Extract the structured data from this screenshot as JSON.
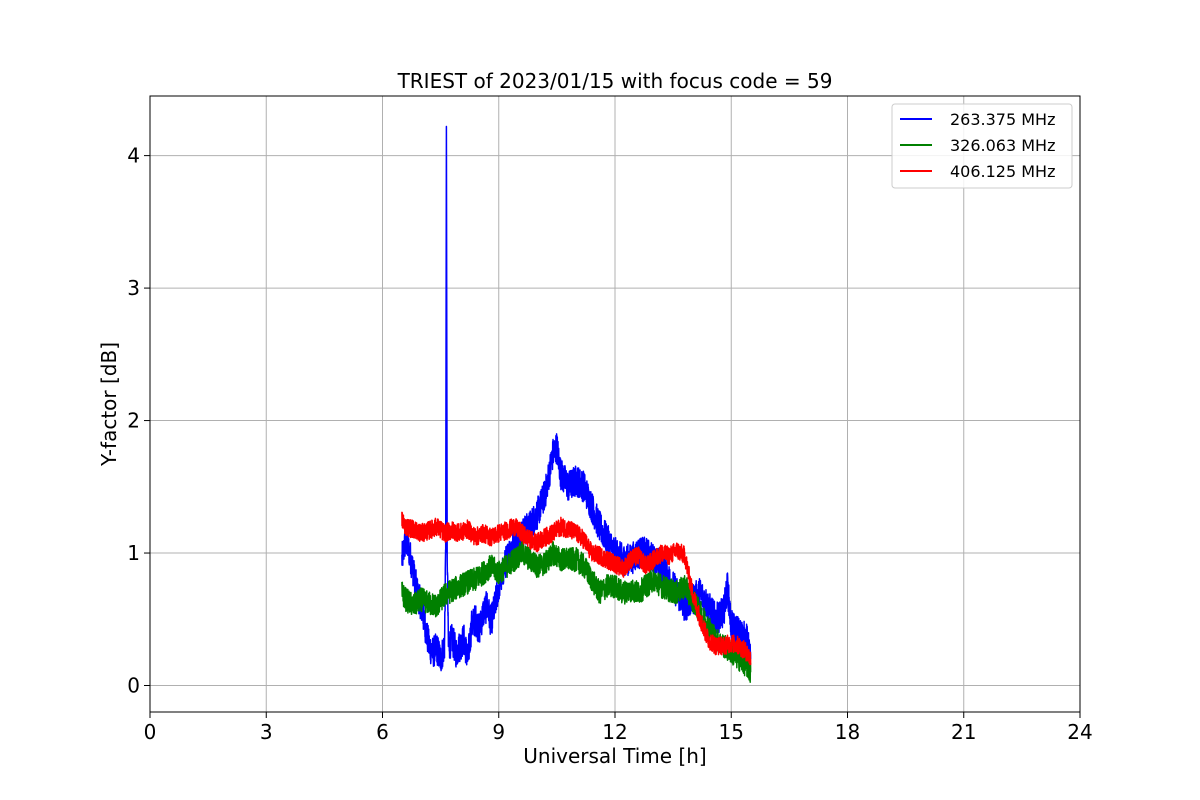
{
  "chart_data": {
    "type": "line",
    "title": "TRIEST of 2023/01/15 with focus code = 59",
    "xlabel": "Universal Time [h]",
    "ylabel": "Y-factor [dB]",
    "xlim": [
      0,
      24
    ],
    "ylim": [
      -0.2,
      4.45
    ],
    "xticks": [
      0,
      3,
      6,
      9,
      12,
      15,
      18,
      21,
      24
    ],
    "yticks": [
      0,
      1,
      2,
      3,
      4
    ],
    "grid": true,
    "legend_position": "top-right",
    "series": [
      {
        "name": "263.375 MHz",
        "color": "#0000ff",
        "noise": 0.12,
        "x": [
          6.5,
          6.6,
          6.7,
          6.8,
          6.9,
          7.0,
          7.1,
          7.2,
          7.3,
          7.4,
          7.5,
          7.6,
          7.63,
          7.65,
          7.67,
          7.7,
          7.8,
          7.9,
          8.0,
          8.1,
          8.2,
          8.3,
          8.4,
          8.5,
          8.6,
          8.7,
          8.8,
          8.9,
          9.0,
          9.2,
          9.4,
          9.6,
          9.8,
          10.0,
          10.2,
          10.4,
          10.5,
          10.6,
          10.8,
          11.0,
          11.2,
          11.4,
          11.6,
          11.8,
          12.0,
          12.2,
          12.4,
          12.6,
          12.8,
          13.0,
          13.2,
          13.4,
          13.6,
          13.8,
          14.0,
          14.2,
          14.4,
          14.6,
          14.8,
          14.9,
          15.0,
          15.2,
          15.4,
          15.5
        ],
        "y": [
          0.95,
          1.1,
          1.0,
          0.85,
          0.7,
          0.6,
          0.45,
          0.3,
          0.25,
          0.28,
          0.2,
          0.3,
          1.0,
          4.22,
          1.0,
          0.3,
          0.35,
          0.25,
          0.3,
          0.35,
          0.2,
          0.45,
          0.5,
          0.42,
          0.55,
          0.6,
          0.48,
          0.6,
          0.75,
          0.95,
          1.1,
          1.15,
          1.2,
          1.3,
          1.45,
          1.75,
          1.8,
          1.6,
          1.5,
          1.55,
          1.5,
          1.35,
          1.2,
          1.1,
          1.0,
          0.95,
          0.95,
          1.0,
          1.0,
          0.95,
          0.9,
          0.8,
          0.7,
          0.6,
          0.65,
          0.7,
          0.6,
          0.5,
          0.55,
          0.75,
          0.45,
          0.4,
          0.35,
          0.2
        ]
      },
      {
        "name": "326.063 MHz",
        "color": "#008000",
        "noise": 0.09,
        "x": [
          6.5,
          6.6,
          6.8,
          7.0,
          7.2,
          7.4,
          7.6,
          7.8,
          8.0,
          8.2,
          8.4,
          8.6,
          8.8,
          9.0,
          9.2,
          9.4,
          9.6,
          9.8,
          10.0,
          10.2,
          10.4,
          10.6,
          10.8,
          11.0,
          11.2,
          11.4,
          11.6,
          11.8,
          12.0,
          12.2,
          12.4,
          12.6,
          12.8,
          13.0,
          13.2,
          13.4,
          13.6,
          13.8,
          14.0,
          14.2,
          14.4,
          14.6,
          14.8,
          15.0,
          15.2,
          15.4,
          15.5
        ],
        "y": [
          0.7,
          0.65,
          0.6,
          0.65,
          0.62,
          0.6,
          0.68,
          0.72,
          0.75,
          0.78,
          0.8,
          0.85,
          0.9,
          0.85,
          0.9,
          0.95,
          1.0,
          0.95,
          0.9,
          0.92,
          1.0,
          0.95,
          0.95,
          0.95,
          0.9,
          0.8,
          0.7,
          0.75,
          0.75,
          0.7,
          0.72,
          0.7,
          0.75,
          0.8,
          0.75,
          0.72,
          0.7,
          0.75,
          0.65,
          0.55,
          0.45,
          0.35,
          0.3,
          0.25,
          0.2,
          0.15,
          0.1
        ]
      },
      {
        "name": "406.125 MHz",
        "color": "#ff0000",
        "noise": 0.07,
        "x": [
          6.5,
          6.6,
          6.8,
          7.0,
          7.2,
          7.4,
          7.6,
          7.8,
          8.0,
          8.2,
          8.4,
          8.6,
          8.8,
          9.0,
          9.2,
          9.4,
          9.6,
          9.8,
          10.0,
          10.2,
          10.4,
          10.6,
          10.8,
          11.0,
          11.2,
          11.4,
          11.6,
          11.8,
          12.0,
          12.2,
          12.4,
          12.6,
          12.8,
          13.0,
          13.2,
          13.4,
          13.6,
          13.8,
          14.0,
          14.2,
          14.4,
          14.6,
          14.8,
          15.0,
          15.2,
          15.4,
          15.5
        ],
        "y": [
          1.25,
          1.2,
          1.18,
          1.15,
          1.17,
          1.2,
          1.15,
          1.17,
          1.15,
          1.18,
          1.12,
          1.15,
          1.12,
          1.15,
          1.17,
          1.2,
          1.15,
          1.1,
          1.08,
          1.12,
          1.15,
          1.2,
          1.18,
          1.15,
          1.1,
          1.0,
          0.98,
          0.95,
          0.92,
          0.88,
          0.95,
          0.98,
          0.9,
          0.95,
          1.0,
          0.98,
          1.02,
          0.98,
          0.7,
          0.5,
          0.35,
          0.3,
          0.3,
          0.32,
          0.3,
          0.25,
          0.2
        ]
      }
    ]
  }
}
